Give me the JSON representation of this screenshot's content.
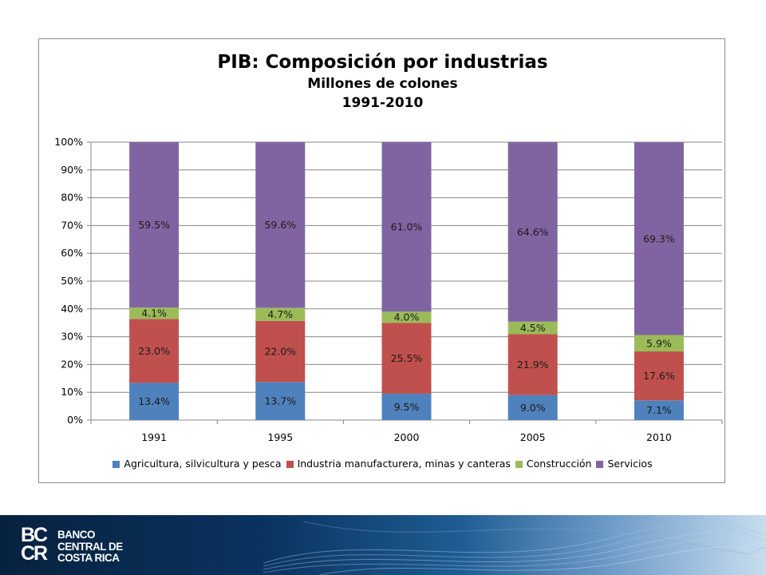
{
  "chart_data": {
    "type": "bar",
    "stacked": "percent",
    "title": "PIB: Composición por industrias",
    "subtitle_lines": [
      "Millones de colones",
      "1991-2010"
    ],
    "categories": [
      "1991",
      "1995",
      "2000",
      "2005",
      "2010"
    ],
    "y_ticks": [
      "0%",
      "10%",
      "20%",
      "30%",
      "40%",
      "50%",
      "60%",
      "70%",
      "80%",
      "90%",
      "100%"
    ],
    "ylim": [
      0,
      100
    ],
    "grid": true,
    "legend_position": "bottom",
    "series": [
      {
        "name": "Agricultura, silvicultura y pesca",
        "color": "#4f81bd",
        "values": [
          13.4,
          13.7,
          9.5,
          9.0,
          7.1
        ],
        "labels": [
          "13.4%",
          "13.7%",
          "9.5%",
          "9.0%",
          "7.1%"
        ]
      },
      {
        "name": "Industria manufacturera, minas y canteras",
        "color": "#c0504d",
        "values": [
          23.0,
          22.0,
          25.5,
          21.9,
          17.6
        ],
        "labels": [
          "23.0%",
          "22.0%",
          "25.5%",
          "21.9%",
          "17.6%"
        ]
      },
      {
        "name": "Construcción",
        "color": "#9bbb59",
        "values": [
          4.1,
          4.7,
          4.0,
          4.5,
          5.9
        ],
        "labels": [
          "4.1%",
          "4.7%",
          "4.0%",
          "4.5%",
          "5.9%"
        ]
      },
      {
        "name": "Servicios",
        "color": "#8064a2",
        "values": [
          59.5,
          59.6,
          61.0,
          64.6,
          69.3
        ],
        "labels": [
          "59.5%",
          "59.6%",
          "61.0%",
          "64.6%",
          "69.3%"
        ]
      }
    ]
  },
  "footer": {
    "logo_mark_top": "BC",
    "logo_mark_bottom": "CR",
    "bank_name_lines": [
      "BANCO",
      "CENTRAL DE",
      "COSTA RICA"
    ]
  }
}
